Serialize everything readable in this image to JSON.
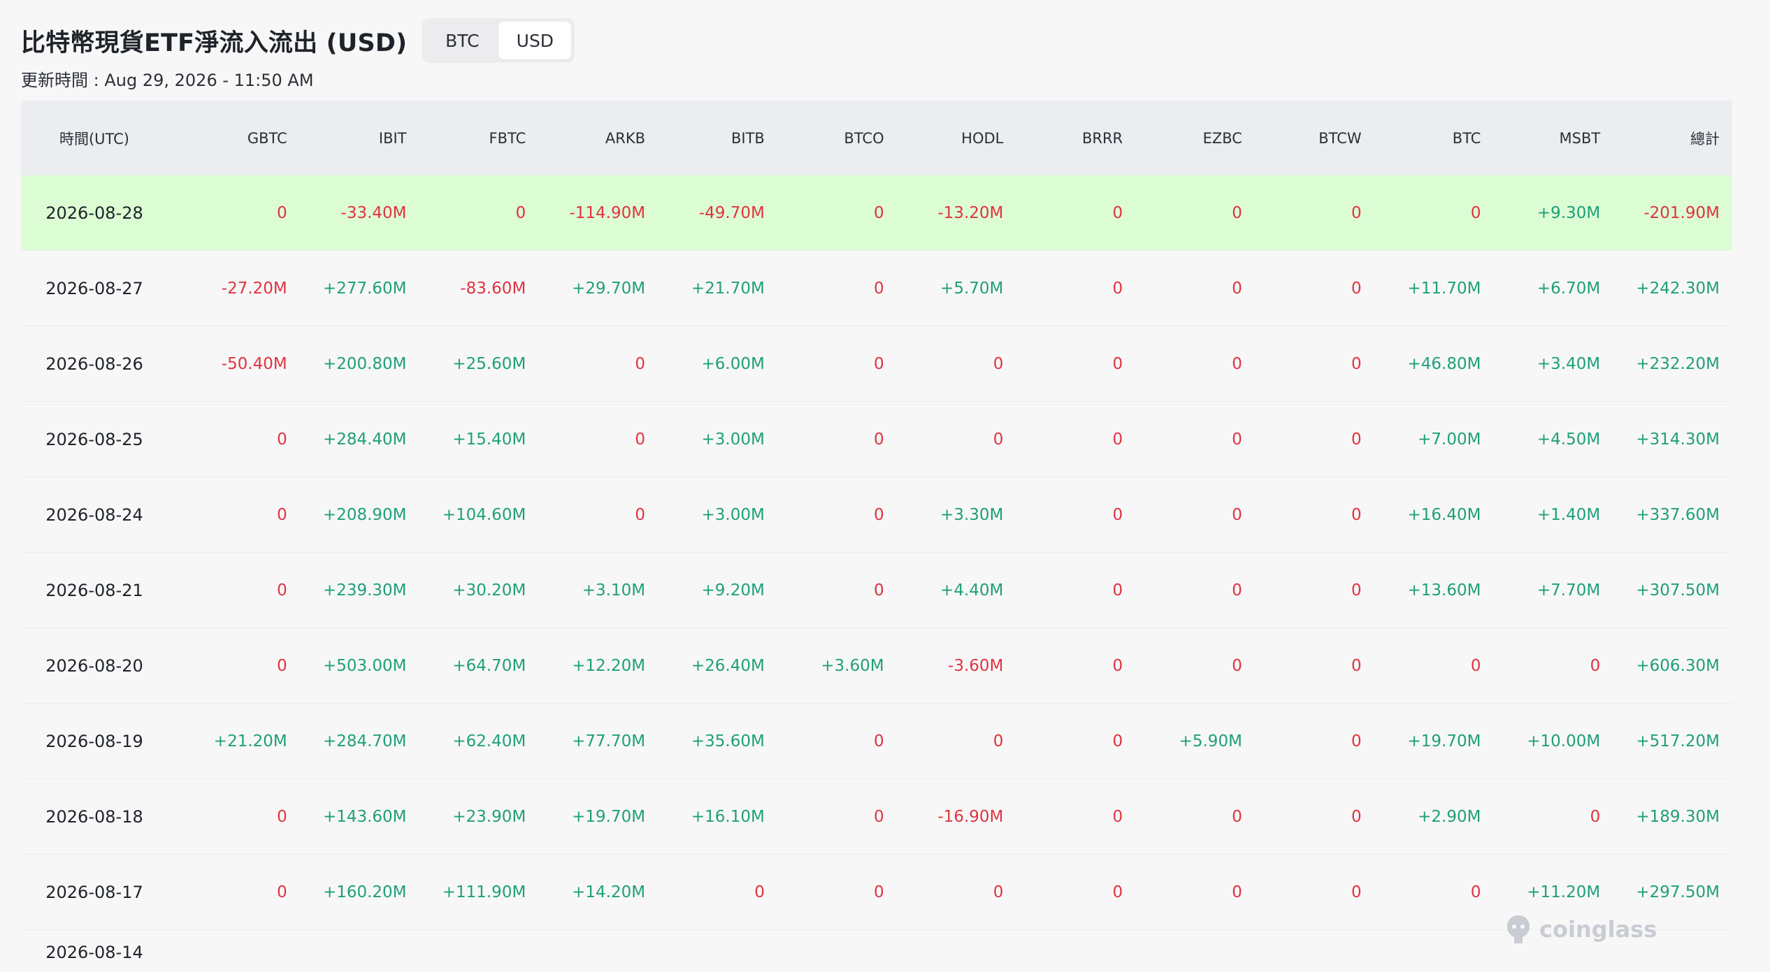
{
  "header": {
    "title": "比特幣現貨ETF淨流入流出 (USD)",
    "toggle": [
      "BTC",
      "USD"
    ],
    "active_toggle": "USD",
    "updated": "更新時間 : Aug 29, 2026 - 11:50 AM"
  },
  "table": {
    "columns": [
      "時間(UTC)",
      "GBTC",
      "IBIT",
      "FBTC",
      "ARKB",
      "BITB",
      "BTCO",
      "HODL",
      "BRRR",
      "EZBC",
      "BTCW",
      "BTC",
      "MSBT",
      "總計"
    ],
    "rows": [
      [
        "2026-08-28",
        "0",
        "-33.40M",
        "0",
        "-114.90M",
        "-49.70M",
        "0",
        "-13.20M",
        "0",
        "0",
        "0",
        "0",
        "+9.30M",
        "-201.90M"
      ],
      [
        "2026-08-27",
        "-27.20M",
        "+277.60M",
        "-83.60M",
        "+29.70M",
        "+21.70M",
        "0",
        "+5.70M",
        "0",
        "0",
        "0",
        "+11.70M",
        "+6.70M",
        "+242.30M"
      ],
      [
        "2026-08-26",
        "-50.40M",
        "+200.80M",
        "+25.60M",
        "0",
        "+6.00M",
        "0",
        "0",
        "0",
        "0",
        "0",
        "+46.80M",
        "+3.40M",
        "+232.20M"
      ],
      [
        "2026-08-25",
        "0",
        "+284.40M",
        "+15.40M",
        "0",
        "+3.00M",
        "0",
        "0",
        "0",
        "0",
        "0",
        "+7.00M",
        "+4.50M",
        "+314.30M"
      ],
      [
        "2026-08-24",
        "0",
        "+208.90M",
        "+104.60M",
        "0",
        "+3.00M",
        "0",
        "+3.30M",
        "0",
        "0",
        "0",
        "+16.40M",
        "+1.40M",
        "+337.60M"
      ],
      [
        "2026-08-21",
        "0",
        "+239.30M",
        "+30.20M",
        "+3.10M",
        "+9.20M",
        "0",
        "+4.40M",
        "0",
        "0",
        "0",
        "+13.60M",
        "+7.70M",
        "+307.50M"
      ],
      [
        "2026-08-20",
        "0",
        "+503.00M",
        "+64.70M",
        "+12.20M",
        "+26.40M",
        "+3.60M",
        "-3.60M",
        "0",
        "0",
        "0",
        "0",
        "0",
        "+606.30M"
      ],
      [
        "2026-08-19",
        "+21.20M",
        "+284.70M",
        "+62.40M",
        "+77.70M",
        "+35.60M",
        "0",
        "0",
        "0",
        "+5.90M",
        "0",
        "+19.70M",
        "+10.00M",
        "+517.20M"
      ],
      [
        "2026-08-18",
        "0",
        "+143.60M",
        "+23.90M",
        "+19.70M",
        "+16.10M",
        "0",
        "-16.90M",
        "0",
        "0",
        "0",
        "+2.90M",
        "0",
        "+189.30M"
      ],
      [
        "2026-08-17",
        "0",
        "+160.20M",
        "+111.90M",
        "+14.20M",
        "0",
        "0",
        "0",
        "0",
        "0",
        "0",
        "0",
        "+11.20M",
        "+297.50M"
      ]
    ],
    "partial_row_date": "2026-08-14"
  },
  "watermark": "coinglass",
  "colors": {
    "positive": "#1fa078",
    "negative": "#e0343f",
    "highlight": "#dcfcd4"
  }
}
